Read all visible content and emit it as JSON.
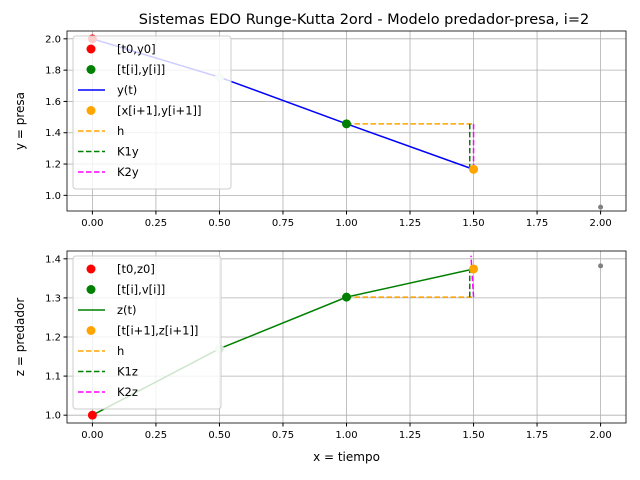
{
  "title": "Sistemas EDO Runge-Kutta 2ord - Modelo predador-presa, i=2",
  "chart_data": [
    {
      "type": "line",
      "ylabel": "y = presa",
      "xlabel": "",
      "xlim": [
        -0.1,
        2.1
      ],
      "ylim": [
        0.9,
        2.05
      ],
      "xticks": [
        "0.00",
        "0.25",
        "0.50",
        "0.75",
        "1.00",
        "1.25",
        "1.50",
        "1.75",
        "2.00"
      ],
      "yticks": [
        "1.0",
        "1.2",
        "1.4",
        "1.6",
        "1.8",
        "2.0"
      ],
      "grid": true,
      "legend_placement": "upper-left",
      "line": {
        "name": "y(t)",
        "color": "#0000ff",
        "x": [
          0,
          0.5,
          1.0,
          1.5
        ],
        "y": [
          2.0,
          1.755,
          1.457,
          1.166
        ]
      },
      "faded_points": {
        "x": [
          0.5
        ],
        "y": [
          1.755
        ]
      },
      "start_point": {
        "name": "[t0,y0]",
        "color": "#ff0000",
        "x": 0,
        "y": 2.0
      },
      "current_point": {
        "name": "[t[i],y[i]]",
        "color": "#008000",
        "x": 1.0,
        "y": 1.457
      },
      "next_point": {
        "name": "[x[i+1],y[i+1]]",
        "color": "#ffa500",
        "x": 1.5,
        "y": 1.166
      },
      "h": {
        "name": "h",
        "color": "#ffa500",
        "x": [
          1.0,
          1.5
        ],
        "y": [
          1.457,
          1.457
        ]
      },
      "K1": {
        "name": "K1y",
        "color": "#008000",
        "x": [
          1.485,
          1.485
        ],
        "y": [
          1.457,
          1.17
        ]
      },
      "K2": {
        "name": "K2y",
        "color": "#ff00ff",
        "x": [
          1.5,
          1.5
        ],
        "y": [
          1.457,
          1.17
        ]
      },
      "extra_point": {
        "color": "#808080",
        "x": 2.0,
        "y": 0.925
      }
    },
    {
      "type": "line",
      "ylabel": "z = predador",
      "xlabel": "x = tiempo",
      "xlim": [
        -0.1,
        2.1
      ],
      "ylim": [
        0.98,
        1.42
      ],
      "xticks": [
        "0.00",
        "0.25",
        "0.50",
        "0.75",
        "1.00",
        "1.25",
        "1.50",
        "1.75",
        "2.00"
      ],
      "yticks": [
        "1.0",
        "1.1",
        "1.2",
        "1.3",
        "1.4"
      ],
      "grid": true,
      "legend_placement": "upper-left",
      "line": {
        "name": "z(t)",
        "color": "#008000",
        "x": [
          0,
          0.5,
          1.0,
          1.5
        ],
        "y": [
          1.0,
          1.17,
          1.302,
          1.374
        ]
      },
      "faded_points": {
        "x": [
          0.5
        ],
        "y": [
          1.17
        ]
      },
      "start_point": {
        "name": "[t0,z0]",
        "color": "#ff0000",
        "x": 0,
        "y": 1.0
      },
      "current_point": {
        "name": "[t[i],v[i]]",
        "color": "#008000",
        "x": 1.0,
        "y": 1.302
      },
      "next_point": {
        "name": "[t[i+1],z[i+1]]",
        "color": "#ffa500",
        "x": 1.5,
        "y": 1.374
      },
      "h": {
        "name": "h",
        "color": "#ffa500",
        "x": [
          1.0,
          1.5
        ],
        "y": [
          1.302,
          1.302
        ]
      },
      "K1": {
        "name": "K1z",
        "color": "#008000",
        "x": [
          1.485,
          1.485
        ],
        "y": [
          1.302,
          1.372
        ]
      },
      "K2": {
        "name": "K2z",
        "color": "#ff00ff",
        "x": [
          1.5,
          1.49
        ],
        "y": [
          1.302,
          1.408
        ]
      },
      "extra_point": {
        "color": "#808080",
        "x": 2.0,
        "y": 1.382
      }
    }
  ]
}
